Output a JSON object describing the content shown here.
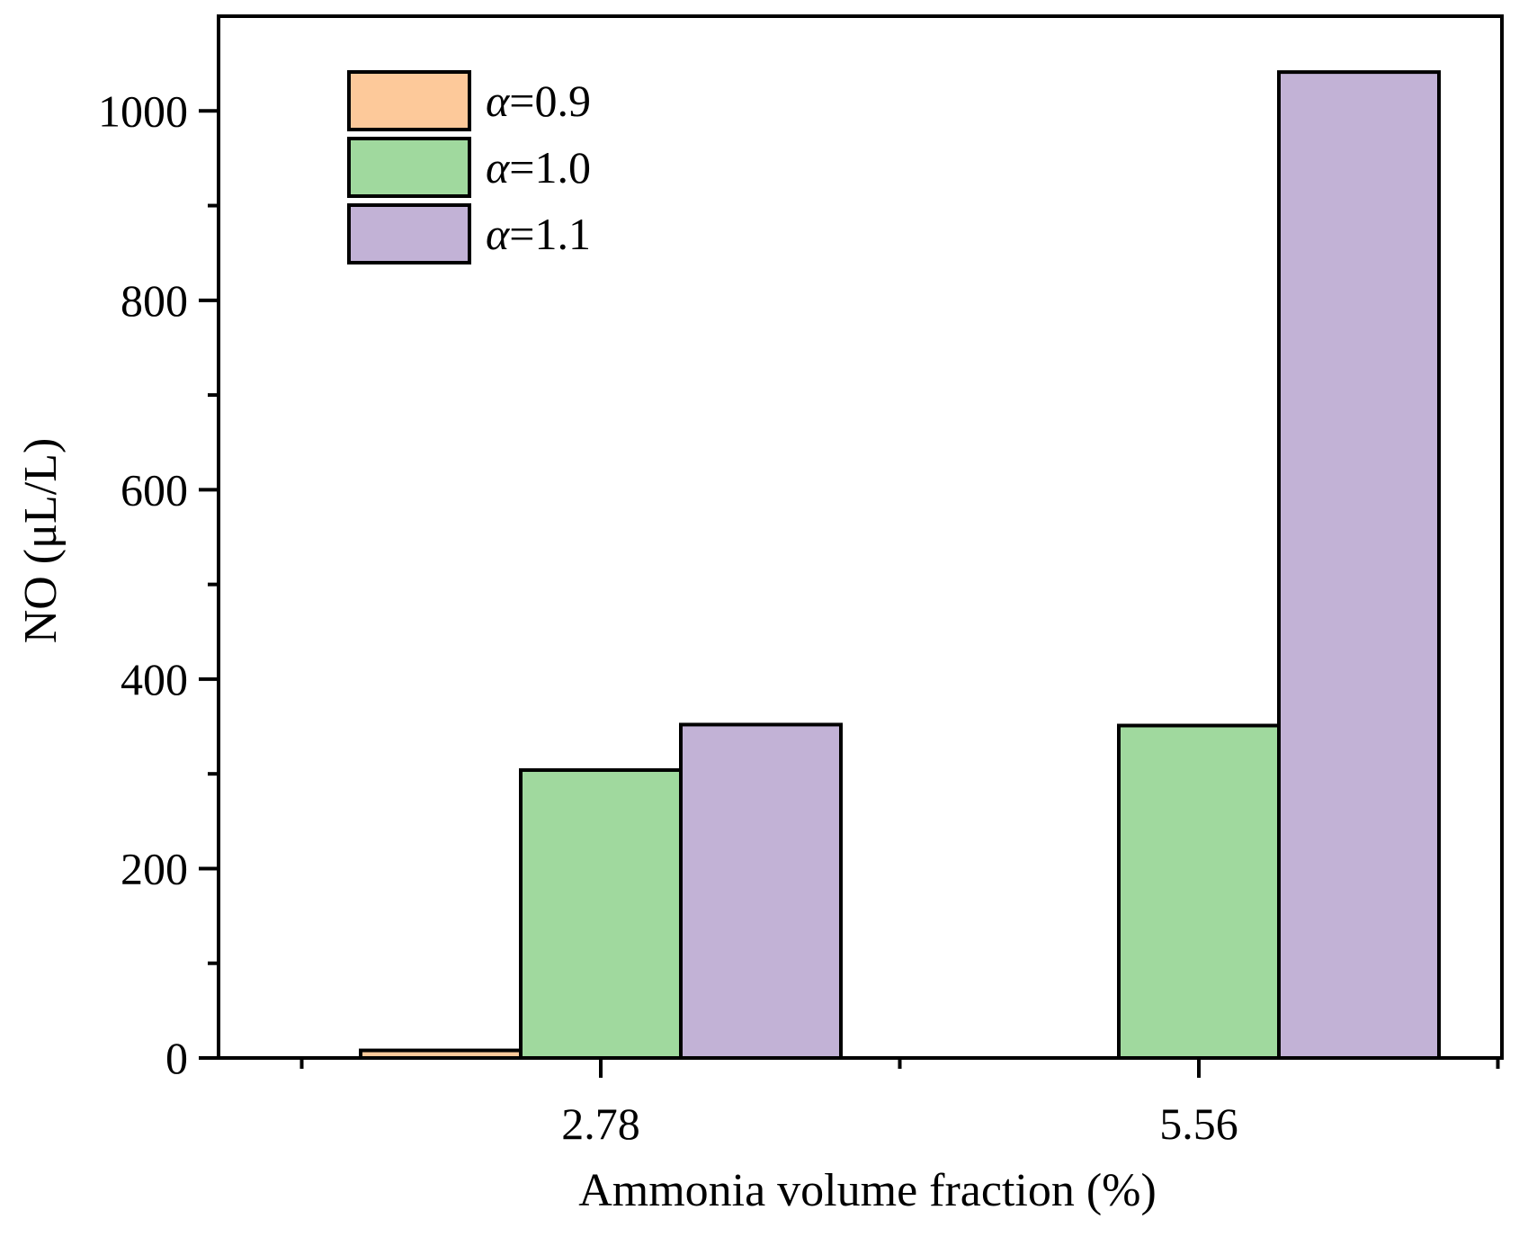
{
  "chart_data": {
    "type": "bar",
    "title": "",
    "xlabel": "Ammonia volume fraction (%)",
    "ylabel": "NO (μL/L)",
    "categories": [
      "2.78",
      "5.56"
    ],
    "ylim": [
      0,
      1100
    ],
    "yticks": [
      0,
      200,
      400,
      600,
      800,
      1000
    ],
    "yticks_minor": [
      100,
      300,
      500,
      700,
      900
    ],
    "grid": false,
    "legend_position": "top-left",
    "series": [
      {
        "name": "α=0.9",
        "label_symbol": "α",
        "label_value": "=0.9",
        "color": "#FDC99A",
        "values": [
          8,
          0
        ]
      },
      {
        "name": "α=1.0",
        "label_symbol": "α",
        "label_value": "=1.0",
        "color": "#A0D99E",
        "values": [
          304,
          351
        ]
      },
      {
        "name": "α=1.1",
        "label_symbol": "α",
        "label_value": "=1.1",
        "color": "#C2B2D6",
        "values": [
          352,
          1041
        ]
      }
    ]
  }
}
